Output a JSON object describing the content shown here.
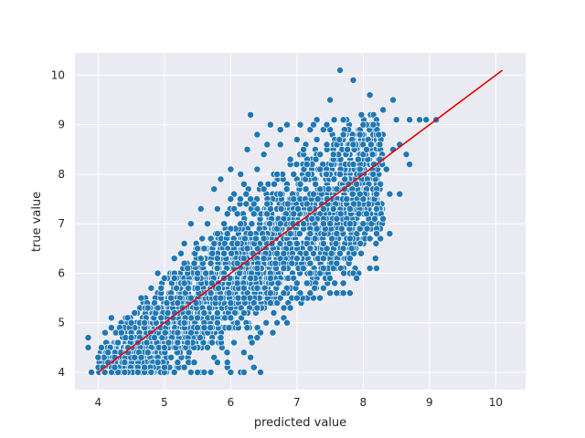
{
  "chart_data": {
    "type": "scatter",
    "title": "",
    "xlabel": "predicted value",
    "ylabel": "true value",
    "xlim": [
      3.65,
      10.45
    ],
    "ylim": [
      3.65,
      10.45
    ],
    "x_ticks": [
      4,
      5,
      6,
      7,
      8,
      9,
      10
    ],
    "y_ticks": [
      4,
      5,
      6,
      7,
      8,
      9,
      10
    ],
    "grid": true,
    "legend": "none",
    "style": {
      "background": "#eaeaf2",
      "grid": "#ffffff",
      "marker_color": "#1f77b4",
      "marker_edge": "#ffffff",
      "line_color": "#e60000"
    },
    "reference_line": {
      "x": [
        4.0,
        10.1
      ],
      "y": [
        4.0,
        10.1
      ]
    },
    "points": [
      [
        3.85,
        4.5
      ],
      [
        3.85,
        4.7
      ],
      [
        3.9,
        4.0
      ],
      [
        4.0,
        4.3
      ],
      [
        4.05,
        4.5
      ],
      [
        4.1,
        4.0
      ],
      [
        4.15,
        4.2
      ],
      [
        4.15,
        4.4
      ],
      [
        4.2,
        4.9
      ],
      [
        4.2,
        5.1
      ],
      [
        4.25,
        4.3
      ],
      [
        4.3,
        4.0
      ],
      [
        4.3,
        4.6
      ],
      [
        4.35,
        4.8
      ],
      [
        4.4,
        4.2
      ],
      [
        4.45,
        4.0
      ],
      [
        4.45,
        4.5
      ],
      [
        4.5,
        5.0
      ],
      [
        4.5,
        4.8
      ],
      [
        4.55,
        4.3
      ],
      [
        4.55,
        5.2
      ],
      [
        4.6,
        4.0
      ],
      [
        4.6,
        4.6
      ],
      [
        4.65,
        5.5
      ],
      [
        4.7,
        4.1
      ],
      [
        4.7,
        4.9
      ],
      [
        4.75,
        5.3
      ],
      [
        4.75,
        4.4
      ],
      [
        4.8,
        4.0
      ],
      [
        4.8,
        5.7
      ],
      [
        4.85,
        5.4
      ],
      [
        4.85,
        4.7
      ],
      [
        4.9,
        6.0
      ],
      [
        4.9,
        4.2
      ],
      [
        4.95,
        5.1
      ],
      [
        4.95,
        5.6
      ],
      [
        5.0,
        4.0
      ],
      [
        5.0,
        4.5
      ],
      [
        5.0,
        5.9
      ],
      [
        5.05,
        5.2
      ],
      [
        5.05,
        5.0
      ],
      [
        5.1,
        4.3
      ],
      [
        5.1,
        5.6
      ],
      [
        5.15,
        6.3
      ],
      [
        5.15,
        4.0
      ],
      [
        5.2,
        5.4
      ],
      [
        5.2,
        4.8
      ],
      [
        5.25,
        6.4
      ],
      [
        5.25,
        5.8
      ],
      [
        5.3,
        4.1
      ],
      [
        5.3,
        5.0
      ],
      [
        5.3,
        6.6
      ],
      [
        5.35,
        4.6
      ],
      [
        5.35,
        6.0
      ],
      [
        5.4,
        5.5
      ],
      [
        5.4,
        7.0
      ],
      [
        5.45,
        4.2
      ],
      [
        5.45,
        6.2
      ],
      [
        5.5,
        4.9
      ],
      [
        5.5,
        5.7
      ],
      [
        5.55,
        7.3
      ],
      [
        5.55,
        4.0
      ],
      [
        5.6,
        6.5
      ],
      [
        5.6,
        5.2
      ],
      [
        5.65,
        7.0
      ],
      [
        5.65,
        4.5
      ],
      [
        5.7,
        6.2
      ],
      [
        5.7,
        5.6
      ],
      [
        5.75,
        7.7
      ],
      [
        5.75,
        4.3
      ],
      [
        5.8,
        6.8
      ],
      [
        5.8,
        5.1
      ],
      [
        5.85,
        7.9
      ],
      [
        5.85,
        4.7
      ],
      [
        5.9,
        6.4
      ],
      [
        5.9,
        5.9
      ],
      [
        5.95,
        7.2
      ],
      [
        5.95,
        4.1
      ],
      [
        6.0,
        8.1
      ],
      [
        6.0,
        5.3
      ],
      [
        6.0,
        6.9
      ],
      [
        6.05,
        4.6
      ],
      [
        6.05,
        7.6
      ],
      [
        6.1,
        6.2
      ],
      [
        6.1,
        5.0
      ],
      [
        6.15,
        8.0
      ],
      [
        6.15,
        4.0
      ],
      [
        6.2,
        7.0
      ],
      [
        6.2,
        5.7
      ],
      [
        6.25,
        8.5
      ],
      [
        6.25,
        6.5
      ],
      [
        6.3,
        9.2
      ],
      [
        6.3,
        4.3
      ],
      [
        6.35,
        7.4
      ],
      [
        6.35,
        5.4
      ],
      [
        6.4,
        8.8
      ],
      [
        6.4,
        6.1
      ],
      [
        6.45,
        7.8
      ],
      [
        6.45,
        4.8
      ],
      [
        6.5,
        8.4
      ],
      [
        6.5,
        6.7
      ],
      [
        6.55,
        5.6
      ],
      [
        6.55,
        7.2
      ],
      [
        6.6,
        9.0
      ],
      [
        6.6,
        6.0
      ],
      [
        6.65,
        8.0
      ],
      [
        6.65,
        5.2
      ],
      [
        6.7,
        7.6
      ],
      [
        6.7,
        6.4
      ],
      [
        6.75,
        8.6
      ],
      [
        6.75,
        5.5
      ],
      [
        6.8,
        7.1
      ],
      [
        6.8,
        6.2
      ],
      [
        6.85,
        9.0
      ],
      [
        6.85,
        5.0
      ],
      [
        6.9,
        8.2
      ],
      [
        6.9,
        6.8
      ],
      [
        6.95,
        7.5
      ],
      [
        6.95,
        5.9
      ],
      [
        7.0,
        8.7
      ],
      [
        7.0,
        6.3
      ],
      [
        7.05,
        7.8
      ],
      [
        7.05,
        5.6
      ],
      [
        7.1,
        8.4
      ],
      [
        7.1,
        7.0
      ],
      [
        7.15,
        6.6
      ],
      [
        7.15,
        5.8
      ],
      [
        7.2,
        8.9
      ],
      [
        7.2,
        6.2
      ],
      [
        7.25,
        7.6
      ],
      [
        7.25,
        5.5
      ],
      [
        7.3,
        9.1
      ],
      [
        7.3,
        6.9
      ],
      [
        7.35,
        8.1
      ],
      [
        7.35,
        6.0
      ],
      [
        7.4,
        7.3
      ],
      [
        7.4,
        5.7
      ],
      [
        7.45,
        8.6
      ],
      [
        7.45,
        6.5
      ],
      [
        7.5,
        9.5
      ],
      [
        7.5,
        7.0
      ],
      [
        7.55,
        6.1
      ],
      [
        7.55,
        8.3
      ],
      [
        7.6,
        5.6
      ],
      [
        7.6,
        7.7
      ],
      [
        7.65,
        10.1
      ],
      [
        7.65,
        6.4
      ],
      [
        7.7,
        8.8
      ],
      [
        7.7,
        5.8
      ],
      [
        7.75,
        7.4
      ],
      [
        7.75,
        9.1
      ],
      [
        7.8,
        6.7
      ],
      [
        7.8,
        8.2
      ],
      [
        7.85,
        6.0
      ],
      [
        7.85,
        9.9
      ],
      [
        7.9,
        7.8
      ],
      [
        7.95,
        6.9
      ],
      [
        8.0,
        8.4
      ],
      [
        8.0,
        9.0
      ],
      [
        8.05,
        7.2
      ],
      [
        8.1,
        9.6
      ],
      [
        8.1,
        6.7
      ],
      [
        8.15,
        8.0
      ],
      [
        8.2,
        7.6
      ],
      [
        8.2,
        6.1
      ],
      [
        8.25,
        8.6
      ],
      [
        8.3,
        7.1
      ],
      [
        8.3,
        9.3
      ],
      [
        8.35,
        8.1
      ],
      [
        8.4,
        7.6
      ],
      [
        8.4,
        6.8
      ],
      [
        8.45,
        9.5
      ],
      [
        8.45,
        8.5
      ],
      [
        8.5,
        9.1
      ],
      [
        8.55,
        7.6
      ],
      [
        8.55,
        8.6
      ],
      [
        8.65,
        8.4
      ],
      [
        8.7,
        9.1
      ],
      [
        8.7,
        8.2
      ],
      [
        8.85,
        9.1
      ],
      [
        8.95,
        9.1
      ],
      [
        9.1,
        9.1
      ],
      [
        8.2,
        7.3
      ],
      [
        8.0,
        7.0
      ],
      [
        7.95,
        8.8
      ],
      [
        6.45,
        4.0
      ],
      [
        6.35,
        4.1
      ],
      [
        6.2,
        4.0
      ],
      [
        6.0,
        4.0
      ],
      [
        5.8,
        4.2
      ],
      [
        5.6,
        4.0
      ],
      [
        5.4,
        4.0
      ],
      [
        5.2,
        4.2
      ],
      [
        5.0,
        4.1
      ],
      [
        4.8,
        4.0
      ],
      [
        4.65,
        4.3
      ],
      [
        4.4,
        4.0
      ],
      [
        4.25,
        4.1
      ],
      [
        6.6,
        5.6
      ],
      [
        6.9,
        5.3
      ],
      [
        7.2,
        5.6
      ],
      [
        7.5,
        5.6
      ],
      [
        7.7,
        5.6
      ],
      [
        7.8,
        5.6
      ],
      [
        7.9,
        5.9
      ],
      [
        8.1,
        6.1
      ],
      [
        7.4,
        6.3
      ],
      [
        7.0,
        5.5
      ],
      [
        6.7,
        5.0
      ],
      [
        6.4,
        4.7
      ],
      [
        6.2,
        4.4
      ],
      [
        5.95,
        4.2
      ],
      [
        5.7,
        4.0
      ],
      [
        5.5,
        4.0
      ],
      [
        5.85,
        5.5
      ],
      [
        6.1,
        5.8
      ],
      [
        6.3,
        5.9
      ],
      [
        6.5,
        6.3
      ],
      [
        6.8,
        6.4
      ],
      [
        7.0,
        6.6
      ],
      [
        7.2,
        6.8
      ],
      [
        7.4,
        7.0
      ],
      [
        7.6,
        7.1
      ],
      [
        7.8,
        7.3
      ],
      [
        8.0,
        7.5
      ],
      [
        6.7,
        6.9
      ],
      [
        6.6,
        7.3
      ],
      [
        6.3,
        6.8
      ],
      [
        6.1,
        6.6
      ],
      [
        5.9,
        6.4
      ],
      [
        5.7,
        6.2
      ],
      [
        5.5,
        6.0
      ],
      [
        5.3,
        5.8
      ],
      [
        5.1,
        5.5
      ],
      [
        4.9,
        5.3
      ],
      [
        4.7,
        5.0
      ],
      [
        4.5,
        4.7
      ],
      [
        5.6,
        5.0
      ],
      [
        5.8,
        5.2
      ],
      [
        6.0,
        5.4
      ],
      [
        6.2,
        5.5
      ],
      [
        6.4,
        5.7
      ],
      [
        6.6,
        5.9
      ],
      [
        6.8,
        6.1
      ],
      [
        7.0,
        6.3
      ],
      [
        7.2,
        6.5
      ],
      [
        7.4,
        6.6
      ],
      [
        7.6,
        6.8
      ],
      [
        7.8,
        7.0
      ],
      [
        5.2,
        4.6
      ],
      [
        5.4,
        4.8
      ],
      [
        5.6,
        4.9
      ],
      [
        5.8,
        5.0
      ],
      [
        6.0,
        5.1
      ],
      [
        6.2,
        5.2
      ],
      [
        6.4,
        5.3
      ],
      [
        6.6,
        5.4
      ],
      [
        6.8,
        5.6
      ],
      [
        7.0,
        5.8
      ],
      [
        7.2,
        6.0
      ],
      [
        7.4,
        6.1
      ],
      [
        7.6,
        6.2
      ],
      [
        7.8,
        6.3
      ],
      [
        6.5,
        7.7
      ],
      [
        6.7,
        8.0
      ],
      [
        6.9,
        8.3
      ],
      [
        7.1,
        8.5
      ],
      [
        7.3,
        8.7
      ],
      [
        7.5,
        8.9
      ],
      [
        7.7,
        9.1
      ],
      [
        6.3,
        7.5
      ],
      [
        6.1,
        7.2
      ],
      [
        5.9,
        7.0
      ],
      [
        5.7,
        6.7
      ],
      [
        5.5,
        6.5
      ],
      [
        5.3,
        6.2
      ],
      [
        6.4,
        8.1
      ],
      [
        6.2,
        7.8
      ],
      [
        6.0,
        7.5
      ],
      [
        5.8,
        7.3
      ],
      [
        6.55,
        8.6
      ],
      [
        6.75,
        8.9
      ],
      [
        7.05,
        9.0
      ],
      [
        7.25,
        9.0
      ],
      [
        7.45,
        9.0
      ],
      [
        7.55,
        8.4
      ],
      [
        7.35,
        8.4
      ],
      [
        7.15,
        8.2
      ],
      [
        6.95,
        8.0
      ],
      [
        6.75,
        7.6
      ],
      [
        6.55,
        7.4
      ],
      [
        6.35,
        7.2
      ],
      [
        6.15,
        7.0
      ],
      [
        5.95,
        6.8
      ],
      [
        5.75,
        6.6
      ],
      [
        5.55,
        6.3
      ],
      [
        5.35,
        6.1
      ],
      [
        5.15,
        5.9
      ],
      [
        4.95,
        5.7
      ],
      [
        7.65,
        8.0
      ],
      [
        7.85,
        8.2
      ],
      [
        8.05,
        8.5
      ],
      [
        8.25,
        8.3
      ],
      [
        7.95,
        7.6
      ],
      [
        7.75,
        7.5
      ],
      [
        7.55,
        7.3
      ],
      [
        7.35,
        7.7
      ],
      [
        7.15,
        7.4
      ],
      [
        6.95,
        7.2
      ],
      [
        6.75,
        7.0
      ]
    ]
  }
}
